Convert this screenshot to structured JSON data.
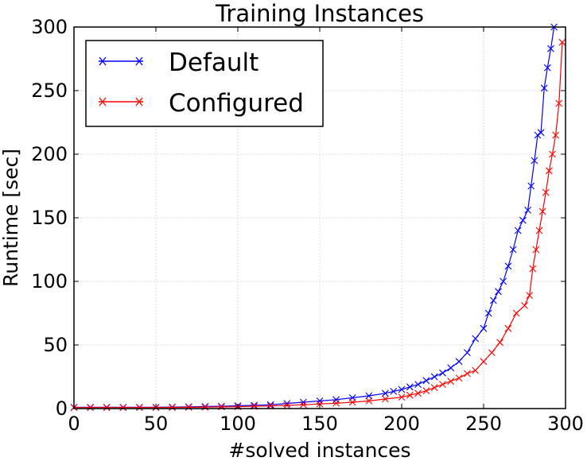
{
  "chart_data": {
    "type": "line",
    "title": "Training Instances",
    "xlabel": "#solved instances",
    "ylabel": "Runtime [sec]",
    "xlim": [
      0,
      300
    ],
    "ylim": [
      0,
      300
    ],
    "xticks": [
      0,
      50,
      100,
      150,
      200,
      250,
      300
    ],
    "yticks": [
      0,
      50,
      100,
      150,
      200,
      250,
      300
    ],
    "grid": true,
    "legend_position": "top-left",
    "marker": "x",
    "series": [
      {
        "name": "Default",
        "color": "#0000ff",
        "x": [
          0,
          10,
          20,
          30,
          40,
          50,
          60,
          70,
          80,
          90,
          100,
          110,
          120,
          130,
          140,
          150,
          160,
          170,
          180,
          190,
          195,
          200,
          205,
          210,
          215,
          220,
          225,
          230,
          235,
          240,
          245,
          250,
          253,
          256,
          259,
          262,
          265,
          268,
          271,
          274,
          277,
          279,
          281,
          283,
          285,
          287,
          289,
          291,
          293
        ],
        "y": [
          1,
          1,
          1,
          1,
          1,
          1,
          1.2,
          1.4,
          1.6,
          1.8,
          2.2,
          2.6,
          3,
          4,
          5,
          6,
          7,
          8.5,
          10,
          12,
          13.5,
          15,
          17,
          19,
          22,
          25,
          28,
          32,
          37,
          44,
          55,
          63,
          75,
          85,
          92,
          100,
          112,
          125,
          140,
          148,
          156,
          175,
          195,
          215,
          217,
          252,
          268,
          283,
          300
        ]
      },
      {
        "name": "Configured",
        "color": "#ff0000",
        "x": [
          0,
          10,
          20,
          30,
          40,
          50,
          60,
          70,
          80,
          90,
          100,
          110,
          120,
          130,
          140,
          150,
          160,
          170,
          180,
          190,
          200,
          205,
          210,
          215,
          220,
          225,
          230,
          235,
          240,
          245,
          250,
          255,
          260,
          265,
          270,
          275,
          278,
          280,
          282,
          284,
          286,
          288,
          290,
          292,
          294,
          296,
          298
        ],
        "y": [
          0.8,
          0.8,
          0.8,
          0.8,
          0.8,
          0.8,
          0.9,
          1,
          1.1,
          1.3,
          1.5,
          1.8,
          2.1,
          2.5,
          3,
          3.6,
          4.2,
          5,
          6,
          7.5,
          9,
          10.5,
          12,
          14,
          16.5,
          19,
          21.5,
          24,
          27.5,
          30,
          37,
          44,
          52,
          63,
          75,
          81,
          89,
          110,
          125,
          140,
          155,
          170,
          187,
          200,
          215,
          240,
          288
        ]
      }
    ]
  }
}
